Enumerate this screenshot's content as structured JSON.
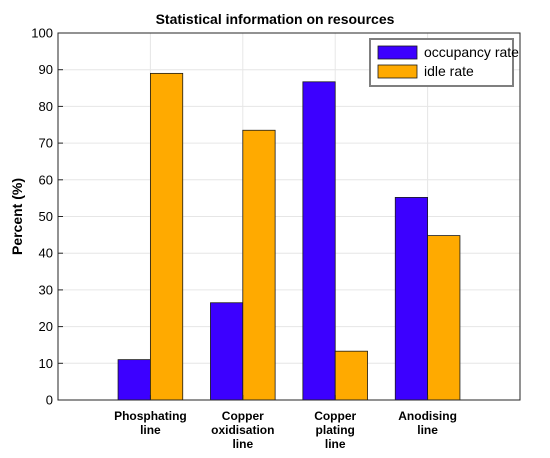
{
  "chart_data": {
    "type": "bar",
    "title": "Statistical information on resources",
    "ylabel": "Percent (%)",
    "xlabel": "",
    "ylim": [
      0,
      100
    ],
    "yticks": [
      0,
      10,
      20,
      30,
      40,
      50,
      60,
      70,
      80,
      90,
      100
    ],
    "grid": true,
    "legend_position": "top-right",
    "categories": [
      [
        "Phosphating",
        "line"
      ],
      [
        "Copper",
        "oxidisation",
        "line"
      ],
      [
        "Copper",
        "plating",
        "line"
      ],
      [
        "Anodising",
        "line"
      ]
    ],
    "x": [
      1,
      2,
      3,
      4
    ],
    "xlim": [
      0,
      5
    ],
    "series": [
      {
        "name": "occupancy rate",
        "color": "#3c00ff",
        "values": [
          11,
          26.5,
          86.7,
          55.2
        ]
      },
      {
        "name": "idle rate",
        "color": "#ffaa00",
        "values": [
          89,
          73.5,
          13.3,
          44.8
        ]
      }
    ]
  }
}
